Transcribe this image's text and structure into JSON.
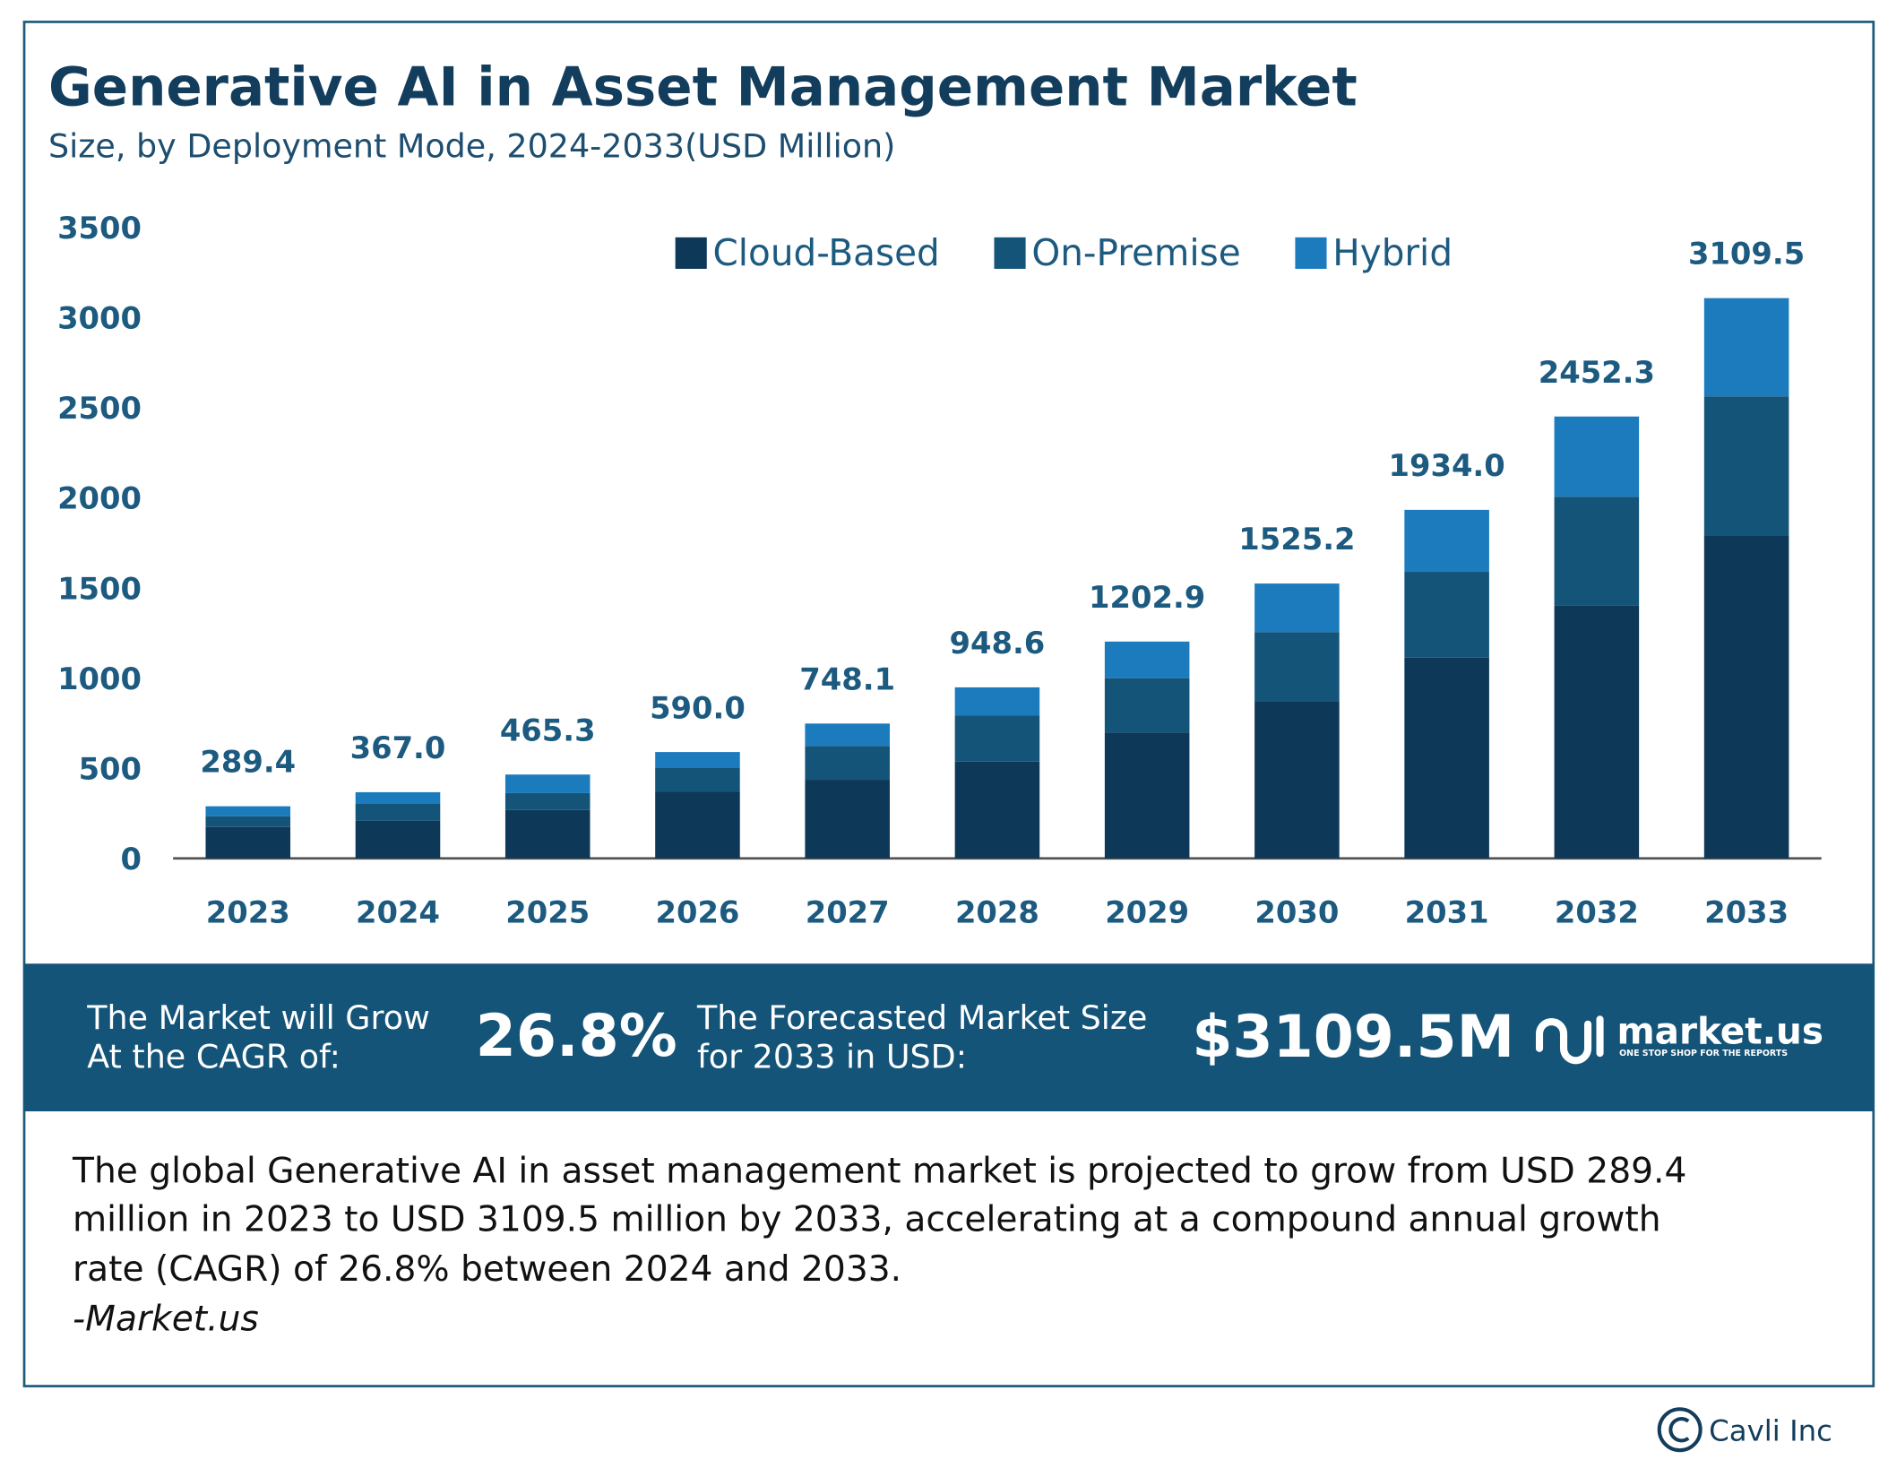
{
  "chart_data": {
    "type": "stacked-bar",
    "title": "Generative AI in Asset Management Market",
    "subtitle": "Size, by Deployment Mode, 2024-2033(USD Million)",
    "categories": [
      "2023",
      "2024",
      "2025",
      "2026",
      "2027",
      "2028",
      "2029",
      "2030",
      "2031",
      "2032",
      "2033"
    ],
    "series": [
      {
        "name": "Cloud-Based",
        "color": "#0d3858",
        "values": [
          174,
          208,
          268,
          369,
          436,
          537,
          698,
          872,
          1114,
          1403,
          1792
        ]
      },
      {
        "name": "On-Premise",
        "color": "#145479",
        "values": [
          60,
          94,
          94,
          134,
          188,
          255,
          302,
          383,
          476,
          604,
          772
        ]
      },
      {
        "name": "Hybrid",
        "color": "#1c7bbd",
        "values": [
          55,
          65,
          103,
          87,
          124,
          157,
          203,
          270,
          344,
          445,
          545
        ]
      }
    ],
    "totals": {
      "values": [
        289.4,
        367.0,
        465.3,
        590.0,
        748.1,
        948.6,
        1202.9,
        1525.2,
        1934.0,
        2452.3,
        3109.5
      ],
      "value_labels": [
        "289.4",
        "367.0",
        "465.3",
        "590.0",
        "748.1",
        "948.6",
        "1202.9",
        "1525.2",
        "1934.0",
        "2452.3",
        "3109.5"
      ]
    },
    "ylim": [
      0,
      3500
    ],
    "yticks": [
      0,
      500,
      1000,
      1500,
      2000,
      2500,
      3000,
      3500
    ],
    "grid": false,
    "legend": "top"
  },
  "banner": {
    "cagr_label": [
      "The Market will Grow",
      "At the CAGR of:"
    ],
    "cagr_value": "26.8%",
    "size_label": [
      "The Forecasted Market Size",
      "for 2033 in USD:"
    ],
    "size_value": "$3109.5M",
    "logo": "market.us",
    "logo_tagline": "ONE STOP SHOP FOR THE REPORTS"
  },
  "description": [
    "The global Generative AI in asset management market is projected to grow from USD 289.4",
    "million in 2023 to USD 3109.5 million by 2033, accelerating at a compound annual growth",
    "rate (CAGR) of 26.8% between 2024 and 2033."
  ],
  "source": "-Market.us",
  "footer": "Cavli Inc"
}
